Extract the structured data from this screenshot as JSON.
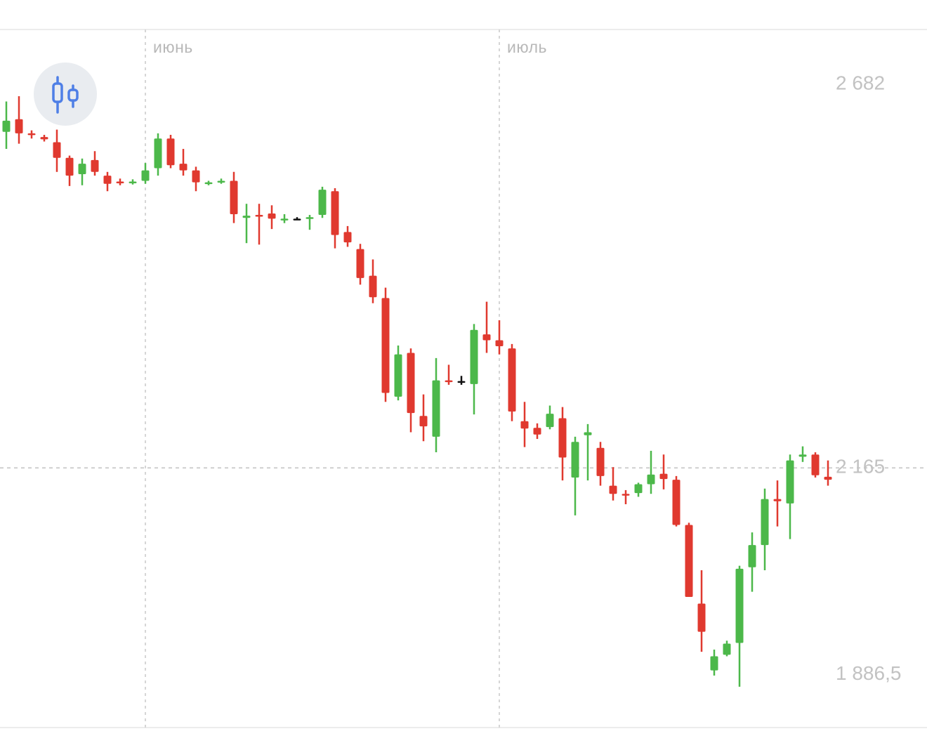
{
  "chart_data": {
    "type": "candlestick",
    "categories": [
      null,
      null,
      null,
      null,
      null,
      null,
      null,
      null,
      null,
      null,
      null,
      "июнь",
      null,
      null,
      null,
      null,
      null,
      null,
      null,
      null,
      null,
      null,
      null,
      null,
      null,
      null,
      null,
      null,
      null,
      null,
      null,
      null,
      null,
      null,
      null,
      null,
      null,
      null,
      null,
      "июль",
      null,
      null,
      null,
      null,
      null,
      null,
      null,
      null,
      null,
      null,
      null,
      null,
      null,
      null,
      null,
      null,
      null,
      null,
      null,
      null,
      null,
      null,
      null,
      null,
      null,
      null
    ],
    "open": [
      2618,
      2635,
      2616,
      2611,
      2604,
      2583,
      2561,
      2580,
      2559,
      2551,
      2549,
      2552,
      2569,
      2609,
      2575,
      2566,
      2548,
      2550,
      2552,
      2502,
      2506,
      2508,
      2500,
      2501,
      2501,
      2506,
      2538,
      2483,
      2460,
      2424,
      2394,
      2261,
      2320,
      2235,
      2207,
      2283,
      2282,
      2278,
      2345,
      2337,
      2326,
      2228,
      2219,
      2220,
      2232,
      2152,
      2209,
      2192,
      2141,
      2130,
      2131,
      2143,
      2157,
      2149,
      2088,
      1982,
      1892,
      1913,
      1929,
      2031,
      2061,
      2123,
      2117,
      2180,
      2183,
      2153
    ],
    "high": [
      2659,
      2666,
      2620,
      2614,
      2621,
      2586,
      2582,
      2592,
      2564,
      2555,
      2554,
      2576,
      2616,
      2614,
      2595,
      2571,
      2552,
      2555,
      2564,
      2521,
      2521,
      2519,
      2507,
      2503,
      2506,
      2544,
      2542,
      2491,
      2467,
      2446,
      2408,
      2330,
      2326,
      2264,
      2313,
      2304,
      2289,
      2359,
      2389,
      2364,
      2332,
      2254,
      2225,
      2249,
      2247,
      2207,
      2224,
      2200,
      2166,
      2135,
      2145,
      2188,
      2183,
      2154,
      2091,
      2027,
      1920,
      1932,
      2033,
      2078,
      2137,
      2148,
      2183,
      2194,
      2186,
      2175
    ],
    "low": [
      2595,
      2602,
      2609,
      2605,
      2564,
      2545,
      2546,
      2559,
      2538,
      2546,
      2547,
      2548,
      2559,
      2569,
      2559,
      2538,
      2546,
      2548,
      2495,
      2468,
      2466,
      2487,
      2495,
      2499,
      2486,
      2502,
      2461,
      2463,
      2412,
      2387,
      2254,
      2256,
      2213,
      2201,
      2186,
      2277,
      2277,
      2237,
      2320,
      2318,
      2228,
      2193,
      2204,
      2217,
      2148,
      2101,
      2148,
      2141,
      2121,
      2116,
      2126,
      2130,
      2136,
      2086,
      1991,
      1917,
      1885,
      1911,
      1870,
      1998,
      2027,
      2086,
      2069,
      2173,
      2152,
      2141
    ],
    "close": [
      2633,
      2616,
      2614,
      2608,
      2583,
      2559,
      2575,
      2564,
      2548,
      2549,
      2551,
      2566,
      2609,
      2573,
      2566,
      2550,
      2550,
      2552,
      2507,
      2505,
      2504,
      2501,
      2501,
      2501,
      2503,
      2540,
      2479,
      2469,
      2421,
      2395,
      2266,
      2318,
      2239,
      2221,
      2283,
      2281,
      2282,
      2351,
      2337,
      2329,
      2241,
      2218,
      2210,
      2238,
      2179,
      2200,
      2213,
      2154,
      2130,
      2128,
      2143,
      2156,
      2150,
      2088,
      1991,
      1944,
      1911,
      1928,
      2029,
      2061,
      2123,
      2120,
      2175,
      2183,
      2155,
      2149
    ],
    "up_color": "#4cb84a",
    "down_color": "#e0392f",
    "flat_color": "#111111",
    "ylim": [
      1849,
      2756
    ],
    "yticks": [
      {
        "value": 2682,
        "label": "2 682"
      },
      {
        "value": 2165,
        "label": "2 165"
      },
      {
        "value": 1886.5,
        "label": "1 886,5"
      }
    ]
  }
}
